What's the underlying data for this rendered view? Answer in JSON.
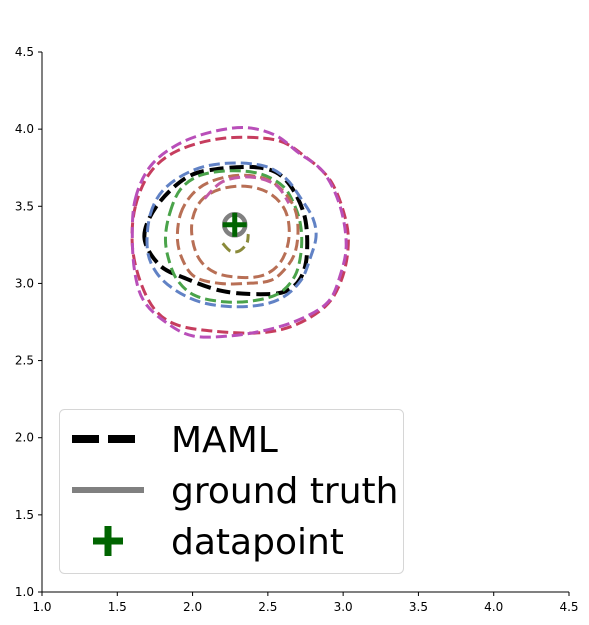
{
  "chart_data": {
    "type": "line",
    "xlim": [
      1.0,
      4.5
    ],
    "ylim": [
      1.0,
      4.5
    ],
    "xticks": [
      "1.0",
      "1.5",
      "2.0",
      "2.5",
      "3.0",
      "3.5",
      "4.0",
      "4.5"
    ],
    "yticks": [
      "1.0",
      "1.5",
      "2.0",
      "2.5",
      "3.0",
      "3.5",
      "4.0",
      "4.5"
    ],
    "grid": false,
    "legend_position": "lower-left",
    "legend": [
      {
        "label": "MAML",
        "style": "dashed",
        "color": "#000000"
      },
      {
        "label": "ground truth",
        "style": "solid",
        "color": "#808080"
      },
      {
        "label": "datapoint",
        "style": "plus-marker",
        "color": "#006400"
      }
    ],
    "datapoint": {
      "x": 2.28,
      "y": 3.38,
      "color": "#006400"
    },
    "ground_truth": {
      "cx": 2.28,
      "cy": 3.38,
      "r": 0.07,
      "color": "#808080"
    },
    "contours": [
      {
        "group": "MAML",
        "color": "#000000",
        "points": [
          [
            1.68,
            3.3
          ],
          [
            1.76,
            3.5
          ],
          [
            1.95,
            3.68
          ],
          [
            2.15,
            3.74
          ],
          [
            2.45,
            3.75
          ],
          [
            2.62,
            3.67
          ],
          [
            2.74,
            3.45
          ],
          [
            2.76,
            3.2
          ],
          [
            2.72,
            3.04
          ],
          [
            2.62,
            2.95
          ],
          [
            2.45,
            2.93
          ],
          [
            2.2,
            2.95
          ],
          [
            1.96,
            3.03
          ],
          [
            1.78,
            3.12
          ]
        ]
      },
      {
        "color": "#c63d5e",
        "points": [
          [
            1.62,
            3.5
          ],
          [
            1.72,
            3.72
          ],
          [
            1.9,
            3.86
          ],
          [
            2.2,
            3.94
          ],
          [
            2.55,
            3.93
          ],
          [
            2.75,
            3.82
          ],
          [
            2.92,
            3.66
          ],
          [
            3.02,
            3.4
          ],
          [
            3.03,
            3.2
          ],
          [
            2.98,
            3.0
          ],
          [
            2.88,
            2.85
          ],
          [
            2.68,
            2.73
          ],
          [
            2.45,
            2.68
          ],
          [
            2.15,
            2.69
          ],
          [
            1.9,
            2.73
          ],
          [
            1.75,
            2.83
          ],
          [
            1.65,
            3.02
          ],
          [
            1.6,
            3.25
          ]
        ]
      },
      {
        "color": "#b94fb9",
        "points": [
          [
            1.62,
            3.55
          ],
          [
            1.72,
            3.76
          ],
          [
            1.9,
            3.9
          ],
          [
            2.12,
            3.98
          ],
          [
            2.35,
            4.01
          ],
          [
            2.55,
            3.96
          ],
          [
            2.7,
            3.85
          ],
          [
            2.87,
            3.72
          ],
          [
            2.98,
            3.5
          ],
          [
            3.02,
            3.25
          ],
          [
            2.98,
            3.05
          ],
          [
            2.9,
            2.88
          ],
          [
            2.72,
            2.77
          ],
          [
            2.5,
            2.7
          ],
          [
            2.25,
            2.66
          ],
          [
            2.0,
            2.66
          ],
          [
            1.82,
            2.75
          ],
          [
            1.68,
            2.88
          ],
          [
            1.62,
            3.05
          ],
          [
            1.6,
            3.3
          ]
        ]
      },
      {
        "color": "#6182c5",
        "points": [
          [
            1.72,
            3.45
          ],
          [
            1.82,
            3.62
          ],
          [
            2.02,
            3.74
          ],
          [
            2.25,
            3.78
          ],
          [
            2.48,
            3.76
          ],
          [
            2.62,
            3.68
          ],
          [
            2.72,
            3.55
          ],
          [
            2.8,
            3.42
          ],
          [
            2.82,
            3.3
          ],
          [
            2.78,
            3.16
          ],
          [
            2.72,
            3.02
          ],
          [
            2.6,
            2.91
          ],
          [
            2.45,
            2.86
          ],
          [
            2.25,
            2.85
          ],
          [
            2.05,
            2.88
          ],
          [
            1.88,
            2.96
          ],
          [
            1.76,
            3.07
          ],
          [
            1.7,
            3.22
          ]
        ]
      },
      {
        "color": "#4aa34a",
        "points": [
          [
            1.85,
            3.46
          ],
          [
            1.92,
            3.61
          ],
          [
            2.05,
            3.7
          ],
          [
            2.25,
            3.73
          ],
          [
            2.45,
            3.71
          ],
          [
            2.6,
            3.63
          ],
          [
            2.68,
            3.5
          ],
          [
            2.72,
            3.36
          ],
          [
            2.72,
            3.2
          ],
          [
            2.68,
            3.05
          ],
          [
            2.58,
            2.94
          ],
          [
            2.42,
            2.89
          ],
          [
            2.22,
            2.88
          ],
          [
            2.02,
            2.92
          ],
          [
            1.9,
            3.02
          ],
          [
            1.84,
            3.16
          ],
          [
            1.82,
            3.3
          ]
        ]
      },
      {
        "color": "#b86f55",
        "points": [
          [
            1.92,
            3.45
          ],
          [
            2.0,
            3.58
          ],
          [
            2.12,
            3.66
          ],
          [
            2.3,
            3.7
          ],
          [
            2.48,
            3.68
          ],
          [
            2.6,
            3.6
          ],
          [
            2.68,
            3.48
          ],
          [
            2.7,
            3.34
          ],
          [
            2.68,
            3.2
          ],
          [
            2.62,
            3.1
          ],
          [
            2.52,
            3.02
          ],
          [
            2.36,
            3.0
          ],
          [
            2.18,
            3.0
          ],
          [
            2.02,
            3.04
          ],
          [
            1.94,
            3.14
          ],
          [
            1.9,
            3.28
          ]
        ]
      },
      {
        "color": "#b86f55",
        "points": [
          [
            2.0,
            3.42
          ],
          [
            2.06,
            3.54
          ],
          [
            2.18,
            3.61
          ],
          [
            2.35,
            3.63
          ],
          [
            2.5,
            3.59
          ],
          [
            2.6,
            3.5
          ],
          [
            2.64,
            3.38
          ],
          [
            2.63,
            3.24
          ],
          [
            2.57,
            3.12
          ],
          [
            2.46,
            3.05
          ],
          [
            2.3,
            3.04
          ],
          [
            2.15,
            3.07
          ],
          [
            2.05,
            3.15
          ],
          [
            2.0,
            3.28
          ]
        ]
      },
      {
        "color": "#c35aa8",
        "points": [
          [
            2.08,
            3.55
          ],
          [
            2.2,
            3.66
          ],
          [
            2.38,
            3.69
          ],
          [
            2.55,
            3.64
          ],
          [
            2.64,
            3.52
          ]
        ]
      },
      {
        "color": "#8a8a3a",
        "points": [
          [
            2.2,
            3.26
          ],
          [
            2.25,
            3.21
          ],
          [
            2.31,
            3.21
          ],
          [
            2.36,
            3.26
          ],
          [
            2.37,
            3.32
          ]
        ]
      }
    ]
  }
}
